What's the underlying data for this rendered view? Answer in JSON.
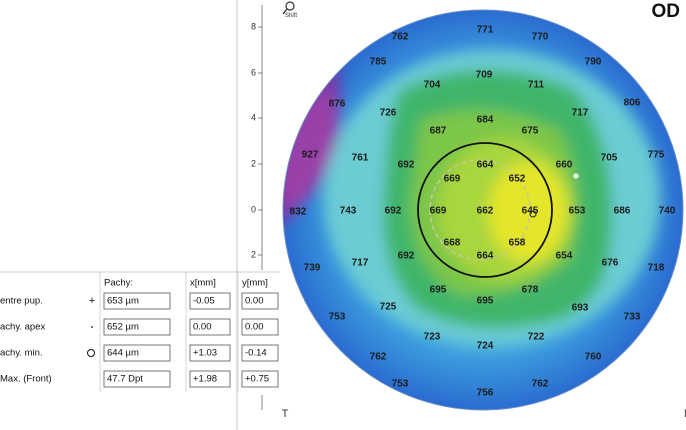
{
  "header": {
    "eye": "OD",
    "zoom_hint": "Shift"
  },
  "axis": {
    "ticks": [
      "8",
      "6",
      "4",
      "2",
      "0",
      "2"
    ],
    "left_label": "T",
    "right_label": "N"
  },
  "map": {
    "values": [
      "762",
      "771",
      "770",
      "785",
      "790",
      "704",
      "709",
      "711",
      "876",
      "806",
      "726",
      "717",
      "687",
      "684",
      "675",
      "927",
      "761",
      "692",
      "664",
      "660",
      "705",
      "775",
      "669",
      "652",
      "832",
      "743",
      "692",
      "669",
      "662",
      "645",
      "653",
      "686",
      "740",
      "668",
      "658",
      "692",
      "664",
      "654",
      "739",
      "717",
      "676",
      "718",
      "695",
      "695",
      "678",
      "725",
      "693",
      "753",
      "733",
      "723",
      "722",
      "724",
      "762",
      "760",
      "753",
      "756",
      "762"
    ]
  },
  "table": {
    "header": [
      "Pachy:",
      "x[mm]",
      "y[mm]"
    ],
    "rows": [
      [
        "entre pup.",
        "653 µm",
        "-0.05",
        "0.00"
      ],
      [
        "achy. apex",
        "652 µm",
        "0.00",
        "0.00"
      ],
      [
        "achy. min.",
        "644 µm",
        "+1.03",
        "-0.14"
      ],
      [
        "Max. (Front)",
        "47.7 Dpt",
        "+1.98",
        "+0.75"
      ]
    ]
  }
}
